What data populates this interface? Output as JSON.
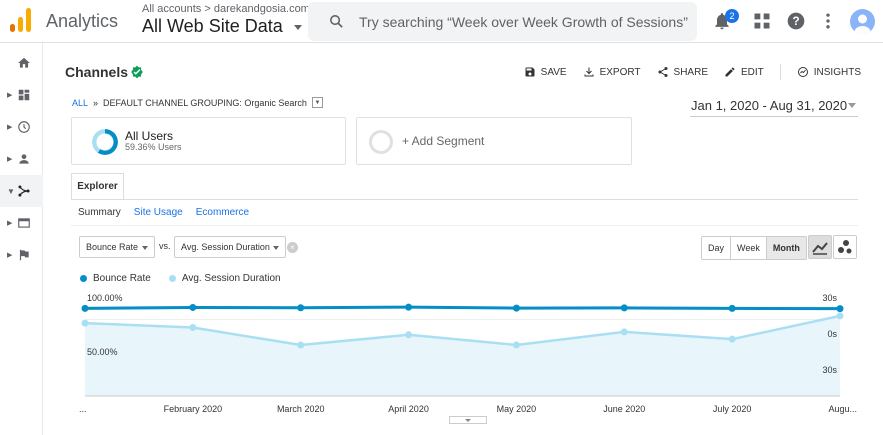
{
  "header": {
    "brand": "Analytics",
    "account_crumb": "All accounts > darekandgosia.com",
    "property": "All Web Site Data",
    "search_placeholder": "Try searching “Week over Week Growth of Sessions”",
    "notifications_count": "2"
  },
  "sidebar": {
    "items": [
      {
        "icon": "home-icon"
      },
      {
        "icon": "dashboard-icon"
      },
      {
        "icon": "clock-icon"
      },
      {
        "icon": "person-icon"
      },
      {
        "icon": "acquisition-icon",
        "active": true
      },
      {
        "icon": "behavior-icon"
      },
      {
        "icon": "flag-icon"
      }
    ]
  },
  "report": {
    "title": "Channels",
    "actions": {
      "save": "SAVE",
      "export": "EXPORT",
      "share": "SHARE",
      "edit": "EDIT",
      "insights": "INSIGHTS"
    },
    "breadcrumb": {
      "all": "ALL",
      "separator": "»",
      "grouping": "DEFAULT CHANNEL GROUPING: Organic Search"
    },
    "date_range": "Jan 1, 2020 - Aug 31, 2020"
  },
  "segments": {
    "primary": {
      "name": "All Users",
      "share": "59.36% Users",
      "share_value": 0.5936
    },
    "add_label": "+ Add Segment"
  },
  "explorer": {
    "tab": "Explorer",
    "subtabs": [
      "Summary",
      "Site Usage",
      "Ecommerce"
    ],
    "metric_primary": "Bounce Rate",
    "vs_label": "vs.",
    "metric_secondary": "Avg. Session Duration",
    "clear": "×",
    "periods": [
      "Day",
      "Week",
      "Month"
    ],
    "period_selected": "Month"
  },
  "colors": {
    "primary_series": "#058dc7",
    "secondary_series": "#aadff3",
    "accent": "#1a73e8",
    "check_green": "#0f9d58"
  },
  "chart_data": {
    "type": "line",
    "x_labels": [
      "...",
      "February 2020",
      "March 2020",
      "April 2020",
      "May 2020",
      "June 2020",
      "July 2020",
      "Augu..."
    ],
    "series": [
      {
        "name": "Bounce Rate",
        "axis": "left",
        "values": [
          94.5,
          95.5,
          95.2,
          95.8,
          94.8,
          95.0,
          94.5,
          94.2
        ]
      },
      {
        "name": "Avg. Session Duration",
        "axis": "right",
        "values": [
          20,
          17,
          5,
          12,
          5,
          14,
          9,
          25
        ]
      }
    ],
    "left_axis_labels": [
      "100.00%",
      "50.00%"
    ],
    "right_axis_labels": [
      "30s",
      "0s",
      "30s"
    ],
    "left_ylim": [
      0,
      110
    ],
    "right_ylim": [
      -30,
      40
    ],
    "grid": true
  }
}
